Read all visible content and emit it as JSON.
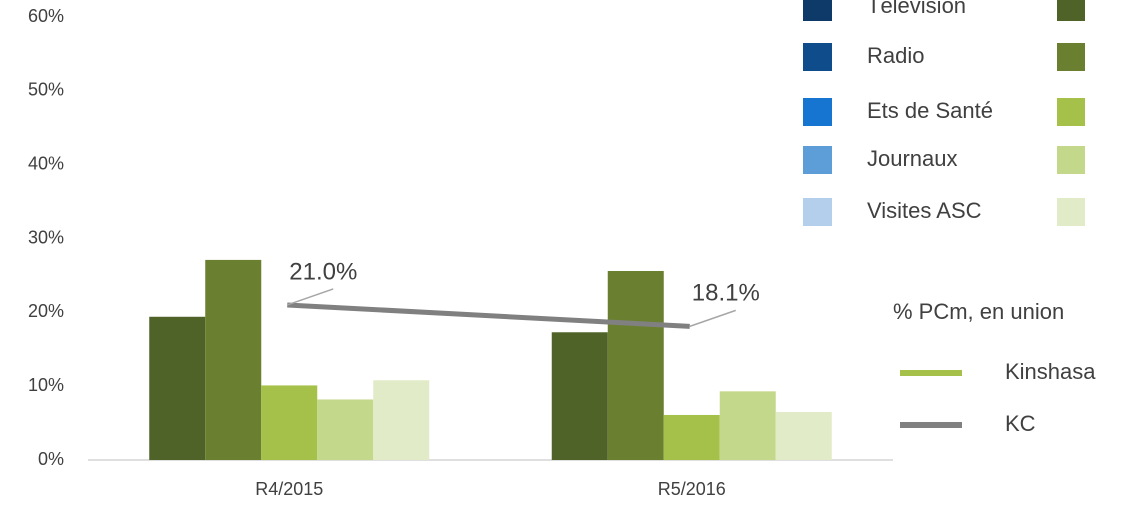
{
  "chart_data": {
    "type": "bar",
    "categories": [
      "R4/2015",
      "R5/2016"
    ],
    "series": [
      {
        "name": "Télévision",
        "color": "#4f6228",
        "kc_color": "#0e3a6a",
        "values": [
          19.4,
          17.3
        ]
      },
      {
        "name": "Radio",
        "color": "#6b7f30",
        "kc_color": "#0f4c8c",
        "values": [
          27.1,
          25.6
        ]
      },
      {
        "name": "Ets de Santé",
        "color": "#a5c14a",
        "kc_color": "#1675d1",
        "values": [
          10.1,
          6.1
        ]
      },
      {
        "name": "Journaux",
        "color": "#c4d88c",
        "kc_color": "#5e9ed8",
        "values": [
          8.2,
          9.3
        ]
      },
      {
        "name": "Visites ASC",
        "color": "#e2ebc8",
        "kc_color": "#b4cfec",
        "values": [
          10.8,
          6.5
        ]
      }
    ],
    "line": {
      "name": "KC",
      "color": "#808080",
      "values": [
        21.0,
        18.1
      ],
      "value_labels": [
        "21.0%",
        "18.1%"
      ]
    },
    "line_legend": {
      "title": "% PCm, en union",
      "kinshasa": {
        "name": "Kinshasa",
        "color": "#a5c14a"
      }
    },
    "ylim": [
      0,
      60
    ],
    "yticks": [
      {
        "value": 0,
        "label": "0%"
      },
      {
        "value": 10,
        "label": "10%"
      },
      {
        "value": 20,
        "label": "20%"
      },
      {
        "value": 30,
        "label": "30%"
      },
      {
        "value": 40,
        "label": "40%"
      },
      {
        "value": 50,
        "label": "50%"
      },
      {
        "value": 60,
        "label": "60%"
      }
    ],
    "grid": false
  }
}
